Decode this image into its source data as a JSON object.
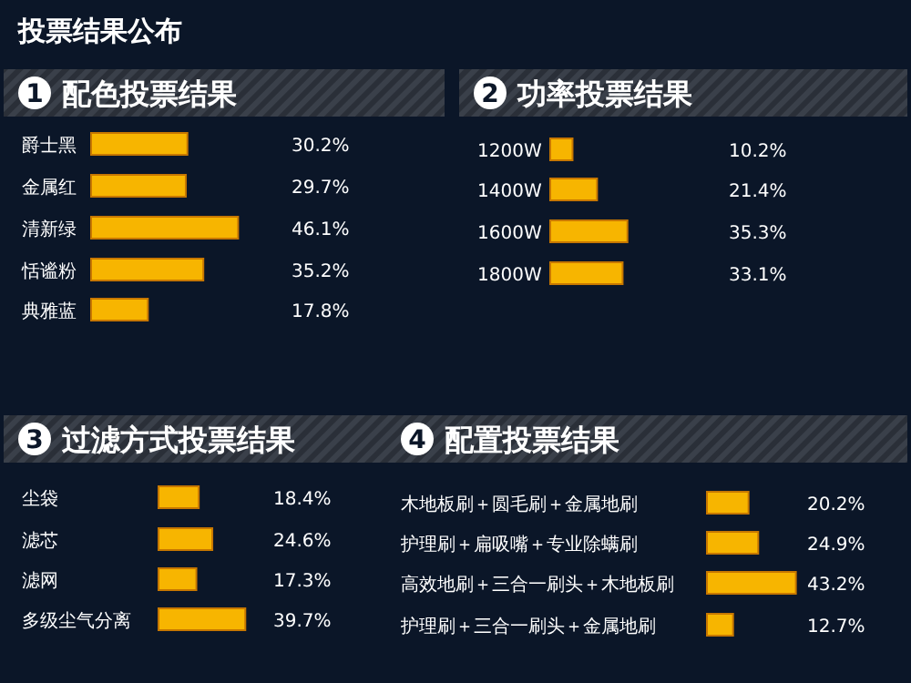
{
  "chart_data": [
    {
      "type": "other",
      "title": "投票结果公布"
    },
    {
      "type": "bar",
      "orientation": "horizontal",
      "title": "配色投票结果",
      "annotations": [
        "1"
      ],
      "categories": [
        "爵士黑",
        "金属红",
        "清新绿",
        "恬谧粉",
        "典雅蓝"
      ],
      "values": [
        30.2,
        29.7,
        46.1,
        35.2,
        17.8
      ],
      "value_labels": [
        "30.2%",
        "29.7%",
        "46.1%",
        "35.2%",
        "17.8%"
      ],
      "color": "#f7b500"
    },
    {
      "type": "bar",
      "orientation": "horizontal",
      "title": "功率投票结果",
      "annotations": [
        "2"
      ],
      "categories": [
        "1200W",
        "1400W",
        "1600W",
        "1800W"
      ],
      "values": [
        10.2,
        21.4,
        35.3,
        33.1
      ],
      "value_labels": [
        "10.2%",
        "21.4%",
        "35.3%",
        "33.1%"
      ],
      "color": "#f7b500"
    },
    {
      "type": "bar",
      "orientation": "horizontal",
      "title": "过滤方式投票结果",
      "annotations": [
        "3"
      ],
      "categories": [
        "尘袋",
        "滤芯",
        "滤网",
        "多级尘气分离"
      ],
      "values": [
        18.4,
        24.6,
        17.3,
        39.7
      ],
      "value_labels": [
        "18.4%",
        "24.6%",
        "17.3%",
        "39.7%"
      ],
      "color": "#f7b500"
    },
    {
      "type": "bar",
      "orientation": "horizontal",
      "title": "配置投票结果",
      "annotations": [
        "4"
      ],
      "categories": [
        "木地板刷＋圆毛刷＋金属地刷",
        "护理刷＋扁吸嘴＋专业除螨刷",
        "高效地刷＋三合一刷头＋木地板刷",
        "护理刷＋三合一刷头＋金属地刷"
      ],
      "values": [
        20.2,
        24.9,
        43.2,
        12.7
      ],
      "value_labels": [
        "20.2%",
        "24.9%",
        "43.2%",
        "12.7%"
      ],
      "color": "#f7b500"
    }
  ]
}
